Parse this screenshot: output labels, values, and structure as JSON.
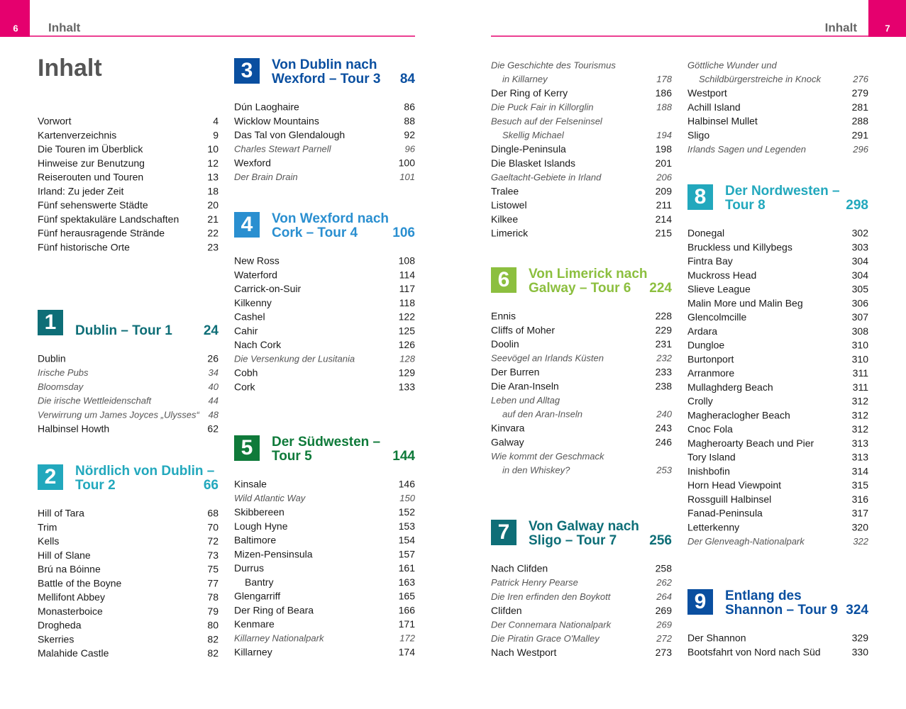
{
  "pages": [
    {
      "number": "6",
      "header": "Inhalt"
    },
    {
      "number": "7",
      "header": "Inhalt"
    }
  ],
  "title": "Inhalt",
  "columns": [
    {
      "blocks": [
        {
          "entries": [
            {
              "text": "Vorwort",
              "page": 4
            },
            {
              "text": "Kartenverzeichnis",
              "page": 9
            },
            {
              "text": "Die Touren im Überblick",
              "page": 10
            },
            {
              "text": "Hinweise zur Benutzung",
              "page": 12
            },
            {
              "text": "Reiserouten und Touren",
              "page": 13
            },
            {
              "text": "Irland: Zu jeder Zeit",
              "page": 18
            },
            {
              "text": "Fünf sehenswerte Städte",
              "page": 20
            },
            {
              "text": "Fünf spektakuläre Landschaften",
              "page": 21
            },
            {
              "text": "Fünf herausragende Strände",
              "page": 22
            },
            {
              "text": "Fünf historische Orte",
              "page": 23
            }
          ]
        },
        {
          "section": {
            "number": 1,
            "title": [
              "Dublin – Tour 1"
            ],
            "page": 24,
            "color": "#0e6e77"
          },
          "entries": [
            {
              "text": "Dublin",
              "page": 26
            },
            {
              "text": "Irische Pubs",
              "page": 34,
              "italic": true
            },
            {
              "text": "Bloomsday",
              "page": 40,
              "italic": true
            },
            {
              "text": "Die irische Wettleidenschaft",
              "page": 44,
              "italic": true
            },
            {
              "text": "Verwirrung um James Joyces „Ulysses“",
              "page": 48,
              "italic": true
            },
            {
              "text": "Halbinsel Howth",
              "page": 62
            }
          ]
        },
        {
          "section": {
            "number": 2,
            "title": [
              "Nördlich von Dublin –",
              "Tour 2"
            ],
            "page": 66,
            "color": "#22a8bd"
          },
          "entries": [
            {
              "text": "Hill of Tara",
              "page": 68
            },
            {
              "text": "Trim",
              "page": 70
            },
            {
              "text": "Kells",
              "page": 72
            },
            {
              "text": "Hill of Slane",
              "page": 73
            },
            {
              "text": "Brú na Bóinne",
              "page": 75
            },
            {
              "text": "Battle of the Boyne",
              "page": 77
            },
            {
              "text": "Mellifont Abbey",
              "page": 78
            },
            {
              "text": "Monasterboice",
              "page": 79
            },
            {
              "text": "Drogheda",
              "page": 80
            },
            {
              "text": "Skerries",
              "page": 82
            },
            {
              "text": "Malahide Castle",
              "page": 82
            }
          ]
        }
      ]
    },
    {
      "blocks": [
        {
          "section": {
            "number": 3,
            "title": [
              "Von Dublin nach",
              "Wexford – Tour 3"
            ],
            "page": 84,
            "color": "#0a4fa0"
          },
          "entries": [
            {
              "text": "Dún Laoghaire",
              "page": 86
            },
            {
              "text": "Wicklow Mountains",
              "page": 88
            },
            {
              "text": "Das Tal von Glendalough",
              "page": 92
            },
            {
              "text": "Charles Stewart Parnell",
              "page": 96,
              "italic": true
            },
            {
              "text": "Wexford",
              "page": 100
            },
            {
              "text": "Der Brain Drain",
              "page": 101,
              "italic": true
            }
          ]
        },
        {
          "section": {
            "number": 4,
            "title": [
              "Von Wexford nach",
              "Cork – Tour 4"
            ],
            "page": 106,
            "color": "#2a8fd0"
          },
          "entries": [
            {
              "text": "New Ross",
              "page": 108
            },
            {
              "text": "Waterford",
              "page": 114
            },
            {
              "text": "Carrick-on-Suir",
              "page": 117
            },
            {
              "text": "Kilkenny",
              "page": 118
            },
            {
              "text": "Cashel",
              "page": 122
            },
            {
              "text": "Cahir",
              "page": 125
            },
            {
              "text": "Nach Cork",
              "page": 126
            },
            {
              "text": "Die Versenkung der Lusitania",
              "page": 128,
              "italic": true
            },
            {
              "text": "Cobh",
              "page": 129
            },
            {
              "text": "Cork",
              "page": 133
            }
          ]
        },
        {
          "section": {
            "number": 5,
            "title": [
              "Der Südwesten –",
              "Tour 5"
            ],
            "page": 144,
            "color": "#0f7a3a"
          },
          "entries": [
            {
              "text": "Kinsale",
              "page": 146
            },
            {
              "text": "Wild Atlantic Way",
              "page": 150,
              "italic": true
            },
            {
              "text": "Skibbereen",
              "page": 152
            },
            {
              "text": "Lough Hyne",
              "page": 153
            },
            {
              "text": "Baltimore",
              "page": 154
            },
            {
              "text": "Mizen-Pensinsula",
              "page": 157
            },
            {
              "text": "Durrus",
              "page": 161
            },
            {
              "text": "Bantry",
              "page": 163,
              "indent": true
            },
            {
              "text": "Glengarriff",
              "page": 165
            },
            {
              "text": "Der Ring of Beara",
              "page": 166
            },
            {
              "text": "Kenmare",
              "page": 171
            },
            {
              "text": "Killarney Nationalpark",
              "page": 172,
              "italic": true
            },
            {
              "text": "Killarney",
              "page": 174
            }
          ]
        }
      ]
    },
    {
      "blocks": [
        {
          "entries": [
            {
              "text": [
                "Die Geschichte des Tourismus",
                "in Killarney"
              ],
              "page": 178,
              "italic": true
            },
            {
              "text": "Der Ring of Kerry",
              "page": 186
            },
            {
              "text": "Die Puck Fair in Killorglin",
              "page": 188,
              "italic": true
            },
            {
              "text": [
                "Besuch auf der Felseninsel",
                "Skellig Michael"
              ],
              "page": 194,
              "italic": true
            },
            {
              "text": "Dingle-Peninsula",
              "page": 198
            },
            {
              "text": "Die Blasket Islands",
              "page": 201
            },
            {
              "text": "Gaeltacht-Gebiete in Irland",
              "page": 206,
              "italic": true
            },
            {
              "text": "Tralee",
              "page": 209
            },
            {
              "text": "Listowel",
              "page": 211
            },
            {
              "text": "Kilkee",
              "page": 214
            },
            {
              "text": "Limerick",
              "page": 215
            }
          ]
        },
        {
          "section": {
            "number": 6,
            "title": [
              "Von Limerick nach",
              "Galway – Tour 6"
            ],
            "page": 224,
            "color": "#8cbf3f"
          },
          "entries": [
            {
              "text": "Ennis",
              "page": 228
            },
            {
              "text": "Cliffs of Moher",
              "page": 229
            },
            {
              "text": "Doolin",
              "page": 231
            },
            {
              "text": "Seevögel an Irlands Küsten",
              "page": 232,
              "italic": true
            },
            {
              "text": "Der Burren",
              "page": 233
            },
            {
              "text": "Die Aran-Inseln",
              "page": 238
            },
            {
              "text": [
                "Leben und Alltag",
                "auf den Aran-Inseln"
              ],
              "page": 240,
              "italic": true
            },
            {
              "text": "Kinvara",
              "page": 243
            },
            {
              "text": "Galway",
              "page": 246
            },
            {
              "text": [
                "Wie kommt der Geschmack",
                "in den Whiskey?"
              ],
              "page": 253,
              "italic": true
            }
          ]
        },
        {
          "section": {
            "number": 7,
            "title": [
              "Von Galway nach",
              "Sligo – Tour 7"
            ],
            "page": 256,
            "color": "#0e6e77"
          },
          "entries": [
            {
              "text": "Nach Clifden",
              "page": 258
            },
            {
              "text": "Patrick Henry Pearse",
              "page": 262,
              "italic": true
            },
            {
              "text": "Die Iren erfinden den Boykott",
              "page": 264,
              "italic": true
            },
            {
              "text": "Clifden",
              "page": 269
            },
            {
              "text": "Der Connemara Nationalpark",
              "page": 269,
              "italic": true
            },
            {
              "text": "Die Piratin Grace O'Malley",
              "page": 272,
              "italic": true
            },
            {
              "text": "Nach Westport",
              "page": 273
            }
          ]
        }
      ]
    },
    {
      "blocks": [
        {
          "entries": [
            {
              "text": [
                "Göttliche Wunder und",
                "Schildbürgerstreiche in Knock"
              ],
              "page": 276,
              "italic": true
            },
            {
              "text": "Westport",
              "page": 279
            },
            {
              "text": "Achill Island",
              "page": 281
            },
            {
              "text": "Halbinsel Mullet",
              "page": 288
            },
            {
              "text": "Sligo",
              "page": 291
            },
            {
              "text": "Irlands Sagen und Legenden",
              "page": 296,
              "italic": true
            }
          ]
        },
        {
          "section": {
            "number": 8,
            "title": [
              "Der Nordwesten –",
              "Tour 8"
            ],
            "page": 298,
            "color": "#22a8bd"
          },
          "entries": [
            {
              "text": "Donegal",
              "page": 302
            },
            {
              "text": "Bruckless und Killybegs",
              "page": 303
            },
            {
              "text": "Fintra Bay",
              "page": 304
            },
            {
              "text": "Muckross Head",
              "page": 304
            },
            {
              "text": "Slieve League",
              "page": 305
            },
            {
              "text": "Malin More und Malin Beg",
              "page": 306
            },
            {
              "text": "Glencolmcille",
              "page": 307
            },
            {
              "text": "Ardara",
              "page": 308
            },
            {
              "text": "Dungloe",
              "page": 310
            },
            {
              "text": "Burtonport",
              "page": 310
            },
            {
              "text": "Arranmore",
              "page": 311
            },
            {
              "text": "Mullaghderg Beach",
              "page": 311
            },
            {
              "text": "Crolly",
              "page": 312
            },
            {
              "text": "Magheraclogher Beach",
              "page": 312
            },
            {
              "text": "Cnoc Fola",
              "page": 312
            },
            {
              "text": "Magheroarty Beach und Pier",
              "page": 313
            },
            {
              "text": "Tory Island",
              "page": 313
            },
            {
              "text": "Inishbofin",
              "page": 314
            },
            {
              "text": "Horn Head Viewpoint",
              "page": 315
            },
            {
              "text": "Rossguill Halbinsel",
              "page": 316
            },
            {
              "text": "Fanad-Peninsula",
              "page": 317
            },
            {
              "text": "Letterkenny",
              "page": 320
            },
            {
              "text": "Der Glenveagh-Nationalpark",
              "page": 322,
              "italic": true
            }
          ]
        },
        {
          "section": {
            "number": 9,
            "title": [
              "Entlang des",
              "Shannon – Tour 9"
            ],
            "page": 324,
            "color": "#0a4fa0"
          },
          "entries": [
            {
              "text": "Der Shannon",
              "page": 329
            },
            {
              "text": "Bootsfahrt von Nord nach Süd",
              "page": 330
            }
          ]
        }
      ]
    }
  ]
}
